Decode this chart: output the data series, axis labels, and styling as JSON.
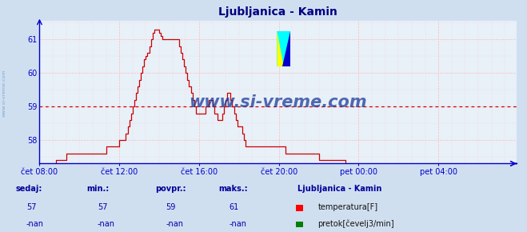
{
  "title": "Ljubljanica - Kamin",
  "title_color": "#000080",
  "bg_color": "#d0dff0",
  "plot_bg_color": "#e8f0f8",
  "grid_color_h": "#ffbbbb",
  "grid_color_v": "#ffbbbb",
  "axis_color": "#0000cc",
  "line_color": "#cc0000",
  "avg_value": 59.0,
  "ylim_min": 57.3,
  "ylim_max": 61.55,
  "yticks": [
    58,
    59,
    60,
    61
  ],
  "xtick_labels": [
    "čet 08:00",
    "čet 12:00",
    "čet 16:00",
    "čet 20:00",
    "pet 00:00",
    "pet 04:00"
  ],
  "xtick_positions": [
    0,
    48,
    96,
    144,
    192,
    240
  ],
  "total_points": 288,
  "watermark": "www.si-vreme.com",
  "watermark_color": "#1a3a9a",
  "sedaj_label": "sedaj:",
  "min_label": "min.:",
  "povpr_label": "povpr.:",
  "maks_label": "maks.:",
  "sedaj_val": "57",
  "min_val": "57",
  "povpr_val": "59",
  "maks_val": "61",
  "nan_val": "-nan",
  "station_label": "Ljubljanica - Kamin",
  "legend_temp": "temperatura[F]",
  "legend_flow": "pretok[čevelj3/min]",
  "label_color": "#000099",
  "value_color": "#0000aa",
  "temp_data": [
    57.2,
    57.2,
    57.2,
    57.2,
    57.2,
    57.2,
    57.2,
    57.2,
    57.2,
    57.2,
    57.4,
    57.4,
    57.4,
    57.4,
    57.4,
    57.4,
    57.6,
    57.6,
    57.6,
    57.6,
    57.6,
    57.6,
    57.6,
    57.6,
    57.6,
    57.6,
    57.6,
    57.6,
    57.6,
    57.6,
    57.6,
    57.6,
    57.6,
    57.6,
    57.6,
    57.6,
    57.6,
    57.6,
    57.6,
    57.6,
    57.8,
    57.8,
    57.8,
    57.8,
    57.8,
    57.8,
    57.8,
    57.8,
    58.0,
    58.0,
    58.0,
    58.0,
    58.2,
    58.4,
    58.6,
    58.8,
    59.0,
    59.2,
    59.4,
    59.6,
    59.8,
    60.0,
    60.2,
    60.4,
    60.5,
    60.6,
    60.8,
    61.0,
    61.2,
    61.3,
    61.3,
    61.3,
    61.2,
    61.1,
    61.0,
    61.0,
    61.0,
    61.0,
    61.0,
    61.0,
    61.0,
    61.0,
    61.0,
    61.0,
    60.8,
    60.6,
    60.4,
    60.2,
    60.0,
    59.8,
    59.6,
    59.4,
    59.2,
    59.0,
    58.8,
    58.8,
    58.8,
    58.8,
    58.8,
    58.8,
    59.0,
    59.0,
    59.2,
    59.2,
    59.0,
    58.8,
    58.8,
    58.6,
    58.6,
    58.6,
    58.8,
    59.0,
    59.2,
    59.4,
    59.4,
    59.2,
    59.0,
    58.8,
    58.6,
    58.4,
    58.4,
    58.4,
    58.2,
    58.0,
    57.8,
    57.8,
    57.8,
    57.8,
    57.8,
    57.8,
    57.8,
    57.8,
    57.8,
    57.8,
    57.8,
    57.8,
    57.8,
    57.8,
    57.8,
    57.8,
    57.8,
    57.8,
    57.8,
    57.8,
    57.8,
    57.8,
    57.8,
    57.8,
    57.6,
    57.6,
    57.6,
    57.6,
    57.6,
    57.6,
    57.6,
    57.6,
    57.6,
    57.6,
    57.6,
    57.6,
    57.6,
    57.6,
    57.6,
    57.6,
    57.6,
    57.6,
    57.6,
    57.6,
    57.4,
    57.4,
    57.4,
    57.4,
    57.4,
    57.4,
    57.4,
    57.4,
    57.4,
    57.4,
    57.4,
    57.4,
    57.4,
    57.4,
    57.4,
    57.4,
    57.2,
    57.2,
    57.2,
    57.2,
    57.2,
    57.2,
    57.2,
    57.2,
    57.2,
    57.2,
    57.2,
    57.2,
    57.2,
    57.2,
    57.2,
    57.2,
    57.0,
    57.0,
    57.0,
    57.0,
    57.0,
    57.0,
    57.0,
    57.0,
    57.0,
    57.0,
    57.0,
    57.0,
    57.0,
    57.0,
    57.0,
    57.0,
    57.0,
    57.0,
    57.0,
    57.0,
    57.0,
    57.0,
    57.0,
    57.0,
    57.0,
    57.0,
    57.0,
    57.0,
    57.0,
    57.0,
    57.0,
    57.0,
    57.0,
    57.0,
    57.0,
    57.0,
    57.0,
    57.0,
    57.0,
    57.0,
    57.0,
    57.0,
    57.0,
    57.0,
    57.0,
    57.0,
    57.0,
    57.0,
    57.0,
    57.0,
    57.0,
    57.0,
    57.0,
    57.0,
    57.0,
    57.0,
    57.0,
    57.0,
    57.0,
    57.0,
    57.0,
    57.0,
    57.0,
    57.0,
    57.0,
    57.0,
    57.0,
    57.0,
    57.0,
    57.0,
    57.0,
    57.0,
    57.0,
    57.0,
    57.0,
    57.0,
    57.0,
    57.0,
    57.0,
    57.0,
    57.0,
    57.0,
    57.0,
    57.0,
    57.0,
    57.0,
    57.0,
    57.0
  ]
}
